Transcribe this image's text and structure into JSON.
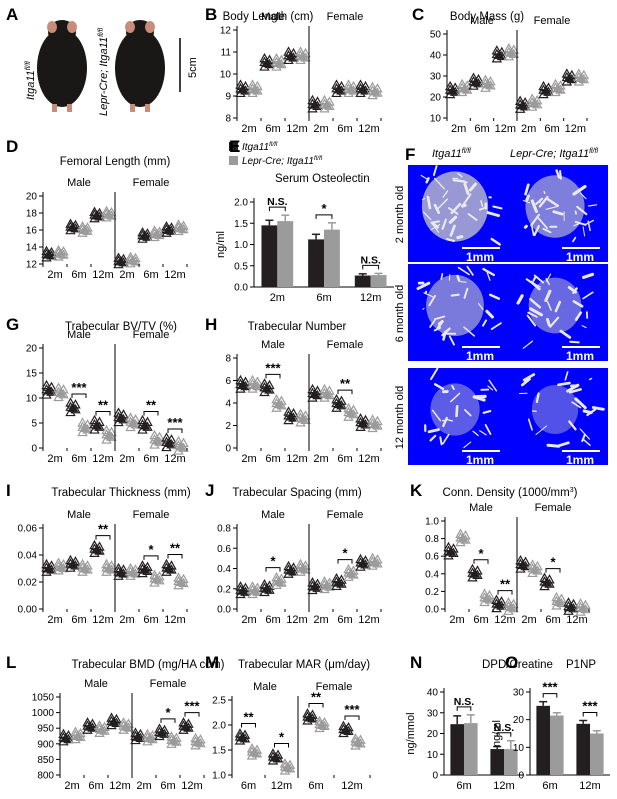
{
  "colors": {
    "ctrl": "#231f20",
    "cko": "#9b9b9b",
    "micro_bg": "#0000ff"
  },
  "figure": {
    "A": {
      "label": "A",
      "genotype_left": "Itga11",
      "genotype_left_sup": "fl/fl",
      "genotype_right": "Lepr-Cre; Itga11",
      "genotype_right_sup": "fl/fl",
      "scale": "5cm"
    },
    "E_legend": {
      "ctrl": "Itga11",
      "ctrl_sup": "fl/fl",
      "cko": "Lepr-Cre; Itga11",
      "cko_sup": "fl/fl"
    },
    "F": {
      "label": "F",
      "col1": "Itga11",
      "col1_sup": "fl/fl",
      "col2": "Lepr-Cre; Itga11",
      "col2_sup": "fl/fl",
      "rows": [
        "2 month old",
        "6 month old",
        "12 month old"
      ],
      "scalebar": "1mm"
    }
  },
  "chart_data": [
    {
      "id": "B",
      "type": "scatter",
      "title": "Body Length (cm)",
      "groups": [
        "Male",
        "Female"
      ],
      "categories": [
        "2m",
        "6m",
        "12m"
      ],
      "yticks": [
        8,
        9,
        10,
        11,
        12
      ],
      "ylim": [
        8,
        12
      ],
      "series": [
        {
          "values": [
            [
              9.3,
              10.5,
              10.8
            ],
            [
              8.6,
              9.3,
              9.3
            ]
          ]
        },
        {
          "values": [
            [
              9.3,
              10.5,
              10.8
            ],
            [
              8.6,
              9.3,
              9.2
            ]
          ]
        }
      ],
      "sig": []
    },
    {
      "id": "C",
      "type": "scatter",
      "title": "Body Mass (g)",
      "groups": [
        "Male",
        "Female"
      ],
      "categories": [
        "2m",
        "6m",
        "12m"
      ],
      "yticks": [
        10,
        20,
        30,
        40,
        50
      ],
      "ylim": [
        10,
        50
      ],
      "series": [
        {
          "values": [
            [
              23,
              27,
              40
            ],
            [
              16,
              23,
              29
            ]
          ]
        },
        {
          "values": [
            [
              24,
              26,
              41
            ],
            [
              17,
              24,
              29
            ]
          ]
        }
      ],
      "sig": []
    },
    {
      "id": "D",
      "type": "scatter",
      "title": "Femoral Length (mm)",
      "groups": [
        "Male",
        "Female"
      ],
      "categories": [
        "2m",
        "6m",
        "12m"
      ],
      "yticks": [
        12,
        14,
        16,
        18,
        20
      ],
      "ylim": [
        12,
        20
      ],
      "series": [
        {
          "values": [
            [
              13.1,
              16.3,
              17.7
            ],
            [
              12.3,
              15.3,
              16.0
            ]
          ]
        },
        {
          "values": [
            [
              13.2,
              16.0,
              17.8
            ],
            [
              12.4,
              15.5,
              16.2
            ]
          ]
        }
      ],
      "sig": []
    },
    {
      "id": "E",
      "type": "bar",
      "title": "Serum Osteolectin",
      "ylabel": "ng/ml",
      "categories": [
        "2m",
        "6m",
        "12m"
      ],
      "yticks": [
        "0.0",
        "0.5",
        "1.0",
        "1.5",
        "2.0"
      ],
      "ylim": [
        0,
        2.0
      ],
      "series": [
        {
          "values": [
            1.45,
            1.12,
            0.27
          ],
          "err": [
            0.12,
            0.12,
            0.04
          ]
        },
        {
          "values": [
            1.55,
            1.35,
            0.28
          ],
          "err": [
            0.14,
            0.16,
            0.04
          ]
        }
      ],
      "sig": [
        {
          "cat": 0,
          "text": "N.S."
        },
        {
          "cat": 1,
          "text": "*"
        },
        {
          "cat": 2,
          "text": "N.S."
        }
      ]
    },
    {
      "id": "G",
      "type": "scatter",
      "title": "Trabecular BV/TV (%)",
      "groups": [
        "Male",
        "Female"
      ],
      "categories": [
        "2m",
        "6m",
        "12m"
      ],
      "yticks": [
        0,
        5,
        10,
        15,
        20
      ],
      "ylim": [
        0,
        20
      ],
      "series": [
        {
          "values": [
            [
              11.5,
              8.0,
              4.5
            ],
            [
              6.0,
              4.5,
              1.0
            ]
          ]
        },
        {
          "values": [
            [
              11.0,
              4.0,
              2.5
            ],
            [
              5.0,
              1.5,
              0.3
            ]
          ]
        }
      ],
      "sig": [
        {
          "group": 0,
          "cat": 1,
          "text": "***"
        },
        {
          "group": 0,
          "cat": 2,
          "text": "**"
        },
        {
          "group": 1,
          "cat": 1,
          "text": "**"
        },
        {
          "group": 1,
          "cat": 2,
          "text": "***"
        }
      ]
    },
    {
      "id": "H",
      "type": "scatter",
      "title": "Trabecular Number",
      "groups": [
        "Male",
        "Female"
      ],
      "categories": [
        "2m",
        "6m",
        "12m"
      ],
      "yticks": [
        0,
        2,
        4,
        6,
        8
      ],
      "ylim": [
        0,
        8
      ],
      "series": [
        {
          "values": [
            [
              5.6,
              5.3,
              2.8
            ],
            [
              4.8,
              3.9,
              2.2
            ]
          ]
        },
        {
          "values": [
            [
              5.6,
              3.9,
              2.6
            ],
            [
              4.8,
              3.1,
              2.1
            ]
          ]
        }
      ],
      "sig": [
        {
          "group": 0,
          "cat": 1,
          "text": "***"
        },
        {
          "group": 1,
          "cat": 1,
          "text": "**"
        }
      ]
    },
    {
      "id": "I",
      "type": "scatter",
      "title": "Trabecular Thickness (mm)",
      "groups": [
        "Male",
        "Female"
      ],
      "categories": [
        "2m",
        "6m",
        "12m"
      ],
      "yticks": [
        "0.00",
        "0.02",
        "0.04",
        "0.06"
      ],
      "ylim": [
        0,
        0.06
      ],
      "series": [
        {
          "values": [
            [
              0.03,
              0.033,
              0.044
            ],
            [
              0.027,
              0.029,
              0.03
            ]
          ]
        },
        {
          "values": [
            [
              0.031,
              0.03,
              0.03
            ],
            [
              0.027,
              0.022,
              0.02
            ]
          ]
        }
      ],
      "sig": [
        {
          "group": 0,
          "cat": 2,
          "text": "**"
        },
        {
          "group": 1,
          "cat": 1,
          "text": "*"
        },
        {
          "group": 1,
          "cat": 2,
          "text": "**"
        }
      ]
    },
    {
      "id": "J",
      "type": "scatter",
      "title": "Trabecular Spacing (mm)",
      "groups": [
        "Male",
        "Female"
      ],
      "categories": [
        "2m",
        "6m",
        "12m"
      ],
      "yticks": [
        "0.0",
        "0.2",
        "0.4",
        "0.6",
        "0.8"
      ],
      "ylim": [
        0,
        0.8
      ],
      "series": [
        {
          "values": [
            [
              0.18,
              0.2,
              0.38
            ],
            [
              0.22,
              0.26,
              0.45
            ]
          ]
        },
        {
          "values": [
            [
              0.18,
              0.27,
              0.4
            ],
            [
              0.23,
              0.35,
              0.46
            ]
          ]
        }
      ],
      "sig": [
        {
          "group": 0,
          "cat": 1,
          "text": "*"
        },
        {
          "group": 1,
          "cat": 1,
          "text": "*"
        }
      ]
    },
    {
      "id": "K",
      "type": "scatter",
      "title": "Conn. Density (1000/mm",
      "title_sup": "3",
      "title_end": ")",
      "groups": [
        "Male",
        "Female"
      ],
      "categories": [
        "2m",
        "6m",
        "12m"
      ],
      "yticks": [
        "0.0",
        "0.2",
        "0.4",
        "0.6",
        "0.8",
        "1.0"
      ],
      "ylim": [
        0,
        1.0
      ],
      "series": [
        {
          "values": [
            [
              0.65,
              0.4,
              0.05
            ],
            [
              0.5,
              0.3,
              0.02
            ]
          ]
        },
        {
          "values": [
            [
              0.8,
              0.12,
              0.02
            ],
            [
              0.45,
              0.08,
              0.01
            ]
          ]
        }
      ],
      "sig": [
        {
          "group": 0,
          "cat": 1,
          "text": "*"
        },
        {
          "group": 0,
          "cat": 2,
          "text": "**"
        },
        {
          "group": 1,
          "cat": 1,
          "text": "*"
        }
      ]
    },
    {
      "id": "L",
      "type": "scatter",
      "title": "Trabecular BMD (mg/HA ccm)",
      "groups": [
        "Male",
        "Female"
      ],
      "categories": [
        "2m",
        "6m",
        "12m"
      ],
      "yticks": [
        800,
        850,
        900,
        950,
        1000,
        1050
      ],
      "ylim": [
        800,
        1050
      ],
      "series": [
        {
          "values": [
            [
              918,
              955,
              970
            ],
            [
              922,
              935,
              955
            ]
          ]
        },
        {
          "values": [
            [
              925,
              945,
              955
            ],
            [
              918,
              910,
              905
            ]
          ]
        }
      ],
      "sig": [
        {
          "group": 1,
          "cat": 1,
          "text": "*"
        },
        {
          "group": 1,
          "cat": 2,
          "text": "***"
        }
      ]
    },
    {
      "id": "M",
      "type": "scatter",
      "title": "Trabecular MAR (μm/day)",
      "groups": [
        "Male",
        "Female"
      ],
      "categories": [
        "6m",
        "12m"
      ],
      "yticks": [
        "1.0",
        "1.5",
        "2.0",
        "2.5"
      ],
      "ylim": [
        1.0,
        2.5
      ],
      "series": [
        {
          "values": [
            [
              1.75,
              1.35
            ],
            [
              2.15,
              1.9
            ]
          ]
        },
        {
          "values": [
            [
              1.45,
              1.15
            ],
            [
              2.0,
              1.65
            ]
          ]
        }
      ],
      "sig": [
        {
          "group": 0,
          "cat": 0,
          "text": "**"
        },
        {
          "group": 0,
          "cat": 1,
          "text": "*"
        },
        {
          "group": 1,
          "cat": 0,
          "text": "**"
        },
        {
          "group": 1,
          "cat": 1,
          "text": "***"
        }
      ]
    },
    {
      "id": "N",
      "type": "bar",
      "title": "DPD/Creatine",
      "ylabel": "ng/mmol",
      "categories": [
        "6m",
        "12m"
      ],
      "yticks": [
        0,
        10,
        20,
        30,
        40
      ],
      "ylim": [
        0,
        40
      ],
      "series": [
        {
          "values": [
            24.5,
            12.5
          ],
          "err": [
            4,
            1.2
          ]
        },
        {
          "values": [
            25.0,
            12.5
          ],
          "err": [
            4,
            4
          ]
        }
      ],
      "sig": [
        {
          "cat": 0,
          "text": "N.S."
        },
        {
          "cat": 1,
          "text": "N.S."
        }
      ]
    },
    {
      "id": "O",
      "type": "bar",
      "title": "P1NP",
      "ylabel": "ng/ml",
      "categories": [
        "6m",
        "12m"
      ],
      "yticks": [
        0,
        10,
        20,
        30
      ],
      "ylim": [
        0,
        30
      ],
      "series": [
        {
          "values": [
            25.0,
            18.5
          ],
          "err": [
            1.5,
            1.2
          ]
        },
        {
          "values": [
            21.5,
            15.0
          ],
          "err": [
            1.0,
            1.0
          ]
        }
      ],
      "sig": [
        {
          "cat": 0,
          "text": "***"
        },
        {
          "cat": 1,
          "text": "***"
        }
      ]
    }
  ]
}
